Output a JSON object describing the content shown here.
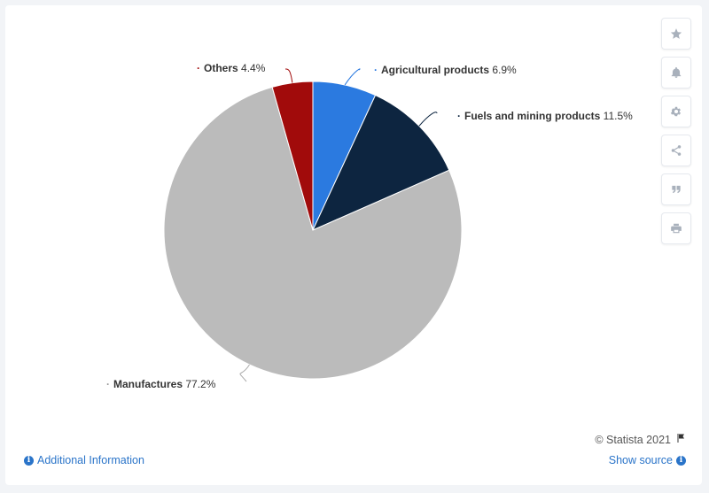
{
  "chart_data": {
    "type": "pie",
    "title": "",
    "slices": [
      {
        "label": "Agricultural products",
        "value": 6.9,
        "value_label": "6.9%",
        "color": "#2b7ae0"
      },
      {
        "label": "Fuels and mining products",
        "value": 11.5,
        "value_label": "11.5%",
        "color": "#0d2540"
      },
      {
        "label": "Manufactures",
        "value": 77.2,
        "value_label": "77.2%",
        "color": "#bbbbbb"
      },
      {
        "label": "Others",
        "value": 4.4,
        "value_label": "4.4%",
        "color": "#a10b0b"
      }
    ],
    "legend": "none",
    "data_labels": "outside-with-leaders"
  },
  "footer": {
    "copyright": "© Statista 2021",
    "additional_info": "Additional Information",
    "show_source": "Show source"
  },
  "toolbar": {
    "icons": [
      "star-icon",
      "bell-icon",
      "gear-icon",
      "share-icon",
      "quote-icon",
      "print-icon"
    ]
  }
}
